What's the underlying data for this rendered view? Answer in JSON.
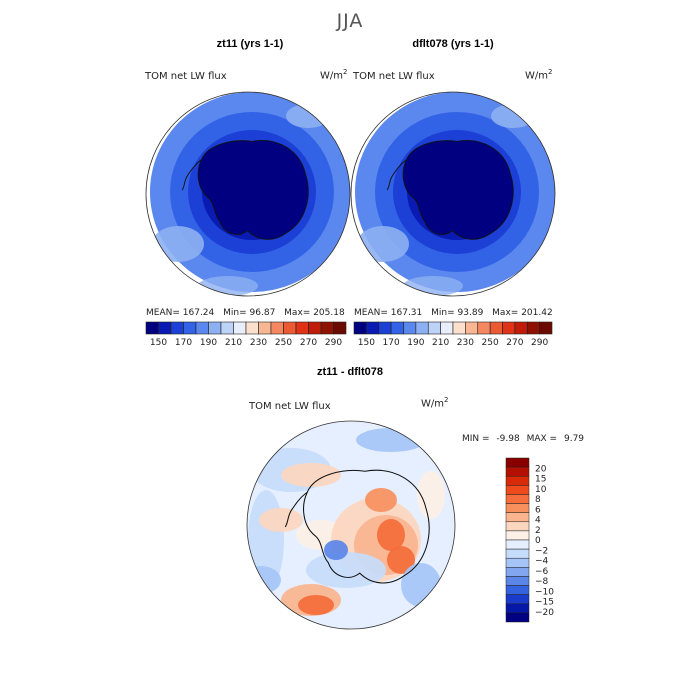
{
  "figure": {
    "season": "JJA",
    "variable_label": "TOM net LW flux",
    "units_base": "W/m",
    "units_exp": "2"
  },
  "panels": {
    "left": {
      "title": "zt11 (yrs 1-1)",
      "mean_label": "MEAN=",
      "mean": "167.24",
      "min_label": "Min=",
      "min": "96.87",
      "max_label": "Max=",
      "max": "205.18"
    },
    "right": {
      "title": "dflt078 (yrs 1-1)",
      "mean_label": "MEAN=",
      "mean": "167.31",
      "min_label": "Min=",
      "min": "93.89",
      "max_label": "Max=",
      "max": "201.42"
    },
    "diff": {
      "title": "zt11 - dflt078",
      "min_label": "MIN =",
      "min": "-9.98",
      "max_label": "MAX =",
      "max": "9.79"
    }
  },
  "chart_data": [
    {
      "type": "heatmap",
      "projection": "south polar stereographic",
      "title": "zt11 (yrs 1-1)",
      "variable": "TOM net LW flux",
      "units": "W/m^2",
      "stats": {
        "mean": 167.24,
        "min": 96.87,
        "max": 205.18
      },
      "colorbar": {
        "levels": [
          150,
          160,
          170,
          180,
          190,
          200,
          210,
          220,
          230,
          240,
          250,
          260,
          270,
          280,
          290
        ],
        "tick_labels": [
          "150",
          "170",
          "190",
          "210",
          "230",
          "250",
          "270",
          "290"
        ],
        "colors": [
          "#000080",
          "#0a1bb4",
          "#1c3fd6",
          "#3263e6",
          "#5b88ee",
          "#8db0f2",
          "#bcd2f6",
          "#e8eefa",
          "#fbe0cd",
          "#f8b693",
          "#f4875f",
          "#ec5a33",
          "#e03214",
          "#c01c08",
          "#8e1102",
          "#6b0a00"
        ]
      }
    },
    {
      "type": "heatmap",
      "projection": "south polar stereographic",
      "title": "dflt078 (yrs 1-1)",
      "variable": "TOM net LW flux",
      "units": "W/m^2",
      "stats": {
        "mean": 167.31,
        "min": 93.89,
        "max": 201.42
      },
      "colorbar": {
        "levels": [
          150,
          160,
          170,
          180,
          190,
          200,
          210,
          220,
          230,
          240,
          250,
          260,
          270,
          280,
          290
        ],
        "tick_labels": [
          "150",
          "170",
          "190",
          "210",
          "230",
          "250",
          "270",
          "290"
        ],
        "colors": [
          "#000080",
          "#0a1bb4",
          "#1c3fd6",
          "#3263e6",
          "#5b88ee",
          "#8db0f2",
          "#bcd2f6",
          "#e8eefa",
          "#fbe0cd",
          "#f8b693",
          "#f4875f",
          "#ec5a33",
          "#e03214",
          "#c01c08",
          "#8e1102",
          "#6b0a00"
        ]
      }
    },
    {
      "type": "heatmap",
      "projection": "south polar stereographic",
      "title": "zt11 - dflt078",
      "variable": "TOM net LW flux",
      "units": "W/m^2",
      "stats": {
        "min": -9.98,
        "max": 9.79
      },
      "colorbar": {
        "tick_labels": [
          "20",
          "15",
          "10",
          "8",
          "6",
          "4",
          "2",
          "0",
          "−2",
          "−4",
          "−6",
          "−8",
          "−10",
          "−15",
          "−20"
        ],
        "colors": [
          "#8a0000",
          "#b41000",
          "#d82a08",
          "#ee4a1c",
          "#f46d3a",
          "#f8905e",
          "#fab48e",
          "#fcd6bf",
          "#fdf0e6",
          "#e6efff",
          "#c6dcfb",
          "#a6c5f7",
          "#82a6f0",
          "#5b86e8",
          "#3562de",
          "#1a3bcc",
          "#0618a8",
          "#000080"
        ]
      }
    }
  ]
}
